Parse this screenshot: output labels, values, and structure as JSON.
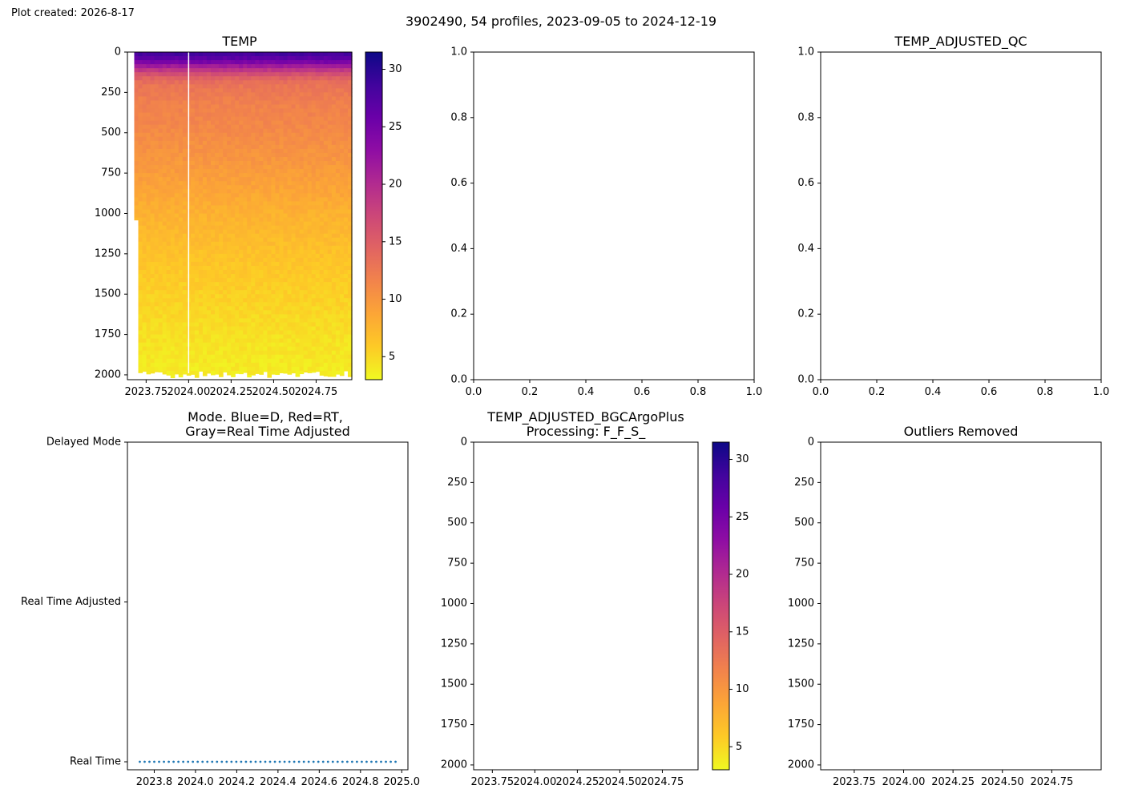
{
  "created_label": "Plot created: 2026-8-17",
  "suptitle": "3902490, 54 profiles, 2023-09-05 to 2024-12-19",
  "chart_data": [
    {
      "id": "temp",
      "type": "heatmap",
      "title": "TEMP",
      "xlabel": "",
      "ylabel": "",
      "x_range": [
        2023.64,
        2024.96
      ],
      "y_range": [
        2030,
        0
      ],
      "xticks": [
        "2023.75",
        "2024.00",
        "2024.25",
        "2024.50",
        "2024.75"
      ],
      "xtick_values": [
        2023.75,
        2024.0,
        2024.25,
        2024.5,
        2024.75
      ],
      "yticks": [
        "0",
        "250",
        "500",
        "750",
        "1000",
        "1250",
        "1500",
        "1750",
        "2000"
      ],
      "ytick_values": [
        0,
        250,
        500,
        750,
        1000,
        1250,
        1500,
        1750,
        2000
      ],
      "colormap": "plasma_r",
      "clim": [
        3,
        31.5
      ],
      "colorbar_ticks": [
        "5",
        "10",
        "15",
        "20",
        "25",
        "30"
      ],
      "colorbar_tick_values": [
        5,
        10,
        15,
        20,
        25,
        30
      ],
      "profiles": 54,
      "temperature_profile": {
        "depth": [
          0,
          50,
          100,
          150,
          200,
          300,
          500,
          750,
          1000,
          1250,
          1500,
          1750,
          2000
        ],
        "temp": [
          29,
          26,
          20,
          15,
          13,
          12,
          11,
          9.5,
          7.8,
          6.5,
          5.5,
          4.5,
          3.8
        ]
      },
      "first_profile_max_depth": 1040,
      "gap_at": 2024.0
    },
    {
      "id": "blank",
      "type": "scatter",
      "title": "",
      "xlabel": "",
      "ylabel": "",
      "xlim": [
        0,
        1
      ],
      "ylim": [
        0,
        1
      ],
      "xticks": [
        "0.0",
        "0.2",
        "0.4",
        "0.6",
        "0.8",
        "1.0"
      ],
      "yticks": [
        "0.0",
        "0.2",
        "0.4",
        "0.6",
        "0.8",
        "1.0"
      ],
      "series": []
    },
    {
      "id": "adjusted_qc",
      "type": "scatter",
      "title": "TEMP_ADJUSTED_QC",
      "xlabel": "",
      "ylabel": "",
      "xlim": [
        0,
        1
      ],
      "ylim": [
        0,
        1
      ],
      "xticks": [
        "0.0",
        "0.2",
        "0.4",
        "0.6",
        "0.8",
        "1.0"
      ],
      "yticks": [
        "0.0",
        "0.2",
        "0.4",
        "0.6",
        "0.8",
        "1.0"
      ],
      "series": []
    },
    {
      "id": "mode",
      "type": "scatter",
      "title_lines": [
        "Mode. Blue=D, Red=RT,",
        "Gray=Real Time Adjusted"
      ],
      "xlabel": "",
      "ylabel": "",
      "x_range": [
        2023.67,
        2025.03
      ],
      "xticks": [
        "2023.8",
        "2024.0",
        "2024.2",
        "2024.4",
        "2024.6",
        "2024.8",
        "2025.0"
      ],
      "xtick_values": [
        2023.8,
        2024.0,
        2024.2,
        2024.4,
        2024.6,
        2024.8,
        2025.0
      ],
      "yticks": [
        "Delayed Mode",
        "Real Time Adjusted",
        "Real Time"
      ],
      "ytick_values": [
        2,
        1,
        0
      ],
      "series": [
        {
          "mode_value": 0,
          "x_start": 2023.73,
          "x_end": 2024.97,
          "count": 54,
          "color": "#1f77b4"
        }
      ]
    },
    {
      "id": "bgcargoplus",
      "type": "heatmap",
      "title_lines": [
        "TEMP_ADJUSTED_BGCArgoPlus",
        "Processing: F_F_S_"
      ],
      "xlabel": "",
      "ylabel": "",
      "x_range": [
        2023.64,
        2024.96
      ],
      "y_range": [
        2030,
        0
      ],
      "xticks": [
        "2023.75",
        "2024.00",
        "2024.25",
        "2024.50",
        "2024.75"
      ],
      "xtick_values": [
        2023.75,
        2024.0,
        2024.25,
        2024.5,
        2024.75
      ],
      "yticks": [
        "0",
        "250",
        "500",
        "750",
        "1000",
        "1250",
        "1500",
        "1750",
        "2000"
      ],
      "ytick_values": [
        0,
        250,
        500,
        750,
        1000,
        1250,
        1500,
        1750,
        2000
      ],
      "colormap": "plasma_r",
      "clim": [
        3,
        31.5
      ],
      "colorbar_ticks": [
        "5",
        "10",
        "15",
        "20",
        "25",
        "30"
      ],
      "colorbar_tick_values": [
        5,
        10,
        15,
        20,
        25,
        30
      ]
    },
    {
      "id": "outliers",
      "type": "heatmap",
      "title": "Outliers Removed",
      "xlabel": "",
      "ylabel": "",
      "x_range": [
        2023.64,
        2024.96
      ],
      "y_range": [
        2030,
        0
      ],
      "xticks": [
        "2023.75",
        "2024.00",
        "2024.25",
        "2024.50",
        "2024.75"
      ],
      "xtick_values": [
        2023.75,
        2024.0,
        2024.25,
        2024.5,
        2024.75
      ],
      "yticks": [
        "0",
        "250",
        "500",
        "750",
        "1000",
        "1250",
        "1500",
        "1750",
        "2000"
      ],
      "ytick_values": [
        0,
        250,
        500,
        750,
        1000,
        1250,
        1500,
        1750,
        2000
      ]
    }
  ]
}
